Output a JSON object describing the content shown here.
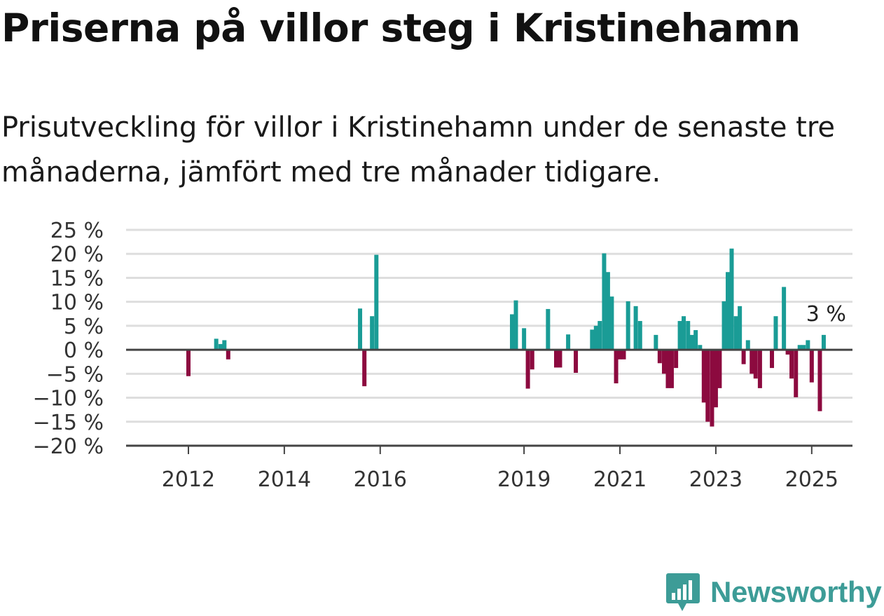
{
  "title": "Priserna på villor steg i Kristinehamn",
  "subtitle": "Prisutveckling för villor i Kristinehamn under de senaste tre månaderna, jämfört med tre månader tidigare.",
  "brand": "Newsworthy",
  "colors": {
    "positive": "#1a9c96",
    "negative": "#8c0a3f",
    "brand": "#3d9c97"
  },
  "chart_data": {
    "type": "bar",
    "title": "Priserna på villor steg i Kristinehamn",
    "ylim": [
      -20,
      25
    ],
    "y_ticks": [
      {
        "value": 25,
        "label": "25 %"
      },
      {
        "value": 20,
        "label": "20 %"
      },
      {
        "value": 15,
        "label": "15 %"
      },
      {
        "value": 10,
        "label": "10 %"
      },
      {
        "value": 5,
        "label": "5 %"
      },
      {
        "value": 0,
        "label": "0 %"
      },
      {
        "value": -5,
        "label": "−5 %"
      },
      {
        "value": -10,
        "label": "−10 %"
      },
      {
        "value": -15,
        "label": "−15 %"
      },
      {
        "value": -20,
        "label": "−20 %"
      }
    ],
    "x_ticks": [
      {
        "value": 2012.0,
        "label": "2012"
      },
      {
        "value": 2014.0,
        "label": "2014"
      },
      {
        "value": 2016.0,
        "label": "2016"
      },
      {
        "value": 2019.0,
        "label": "2019"
      },
      {
        "value": 2021.0,
        "label": "2021"
      },
      {
        "value": 2023.0,
        "label": "2023"
      },
      {
        "value": 2025.0,
        "label": "2025"
      }
    ],
    "xlim": [
      2010.7,
      2025.85
    ],
    "last_value_label": "3 %",
    "points": [
      {
        "x": 2012.0,
        "y": -5.5
      },
      {
        "x": 2012.58,
        "y": 2.3
      },
      {
        "x": 2012.67,
        "y": 1.2
      },
      {
        "x": 2012.75,
        "y": 2.0
      },
      {
        "x": 2012.83,
        "y": -2.0
      },
      {
        "x": 2015.58,
        "y": 8.6
      },
      {
        "x": 2015.67,
        "y": -7.6
      },
      {
        "x": 2015.83,
        "y": 7.0
      },
      {
        "x": 2015.92,
        "y": 19.8
      },
      {
        "x": 2018.75,
        "y": 7.4
      },
      {
        "x": 2018.83,
        "y": 10.3
      },
      {
        "x": 2019.0,
        "y": 4.5
      },
      {
        "x": 2019.08,
        "y": -8.1
      },
      {
        "x": 2019.17,
        "y": -4.1
      },
      {
        "x": 2019.5,
        "y": 8.5
      },
      {
        "x": 2019.67,
        "y": -3.7
      },
      {
        "x": 2019.75,
        "y": -3.7
      },
      {
        "x": 2019.92,
        "y": 3.2
      },
      {
        "x": 2020.08,
        "y": -4.8
      },
      {
        "x": 2020.42,
        "y": 4.2
      },
      {
        "x": 2020.5,
        "y": 5.0
      },
      {
        "x": 2020.58,
        "y": 6.0
      },
      {
        "x": 2020.67,
        "y": 20.1
      },
      {
        "x": 2020.75,
        "y": 16.2
      },
      {
        "x": 2020.83,
        "y": 11.1
      },
      {
        "x": 2020.92,
        "y": -7.0
      },
      {
        "x": 2021.0,
        "y": -2.0
      },
      {
        "x": 2021.08,
        "y": -2.0
      },
      {
        "x": 2021.17,
        "y": 10.1
      },
      {
        "x": 2021.33,
        "y": 9.1
      },
      {
        "x": 2021.42,
        "y": 6.0
      },
      {
        "x": 2021.75,
        "y": 3.1
      },
      {
        "x": 2021.83,
        "y": -2.8
      },
      {
        "x": 2021.92,
        "y": -5.0
      },
      {
        "x": 2022.0,
        "y": -8.0
      },
      {
        "x": 2022.08,
        "y": -8.0
      },
      {
        "x": 2022.17,
        "y": -3.8
      },
      {
        "x": 2022.25,
        "y": 6.0
      },
      {
        "x": 2022.33,
        "y": 7.0
      },
      {
        "x": 2022.42,
        "y": 6.0
      },
      {
        "x": 2022.5,
        "y": 3.1
      },
      {
        "x": 2022.58,
        "y": 4.1
      },
      {
        "x": 2022.67,
        "y": 1.0
      },
      {
        "x": 2022.75,
        "y": -11.0
      },
      {
        "x": 2022.83,
        "y": -15.0
      },
      {
        "x": 2022.92,
        "y": -16.0
      },
      {
        "x": 2023.0,
        "y": -12.0
      },
      {
        "x": 2023.08,
        "y": -8.0
      },
      {
        "x": 2023.17,
        "y": 10.1
      },
      {
        "x": 2023.25,
        "y": 16.2
      },
      {
        "x": 2023.33,
        "y": 21.1
      },
      {
        "x": 2023.42,
        "y": 7.0
      },
      {
        "x": 2023.5,
        "y": 9.1
      },
      {
        "x": 2023.58,
        "y": -3.0
      },
      {
        "x": 2023.67,
        "y": 2.0
      },
      {
        "x": 2023.75,
        "y": -5.0
      },
      {
        "x": 2023.83,
        "y": -6.0
      },
      {
        "x": 2023.92,
        "y": -8.0
      },
      {
        "x": 2024.17,
        "y": -3.8
      },
      {
        "x": 2024.25,
        "y": 7.0
      },
      {
        "x": 2024.42,
        "y": 13.1
      },
      {
        "x": 2024.5,
        "y": -1.0
      },
      {
        "x": 2024.58,
        "y": -6.0
      },
      {
        "x": 2024.67,
        "y": -9.9
      },
      {
        "x": 2024.75,
        "y": 1.0
      },
      {
        "x": 2024.83,
        "y": 1.0
      },
      {
        "x": 2024.92,
        "y": 2.0
      },
      {
        "x": 2025.0,
        "y": -6.8
      },
      {
        "x": 2025.17,
        "y": -12.8
      },
      {
        "x": 2025.25,
        "y": 3.1
      }
    ]
  }
}
